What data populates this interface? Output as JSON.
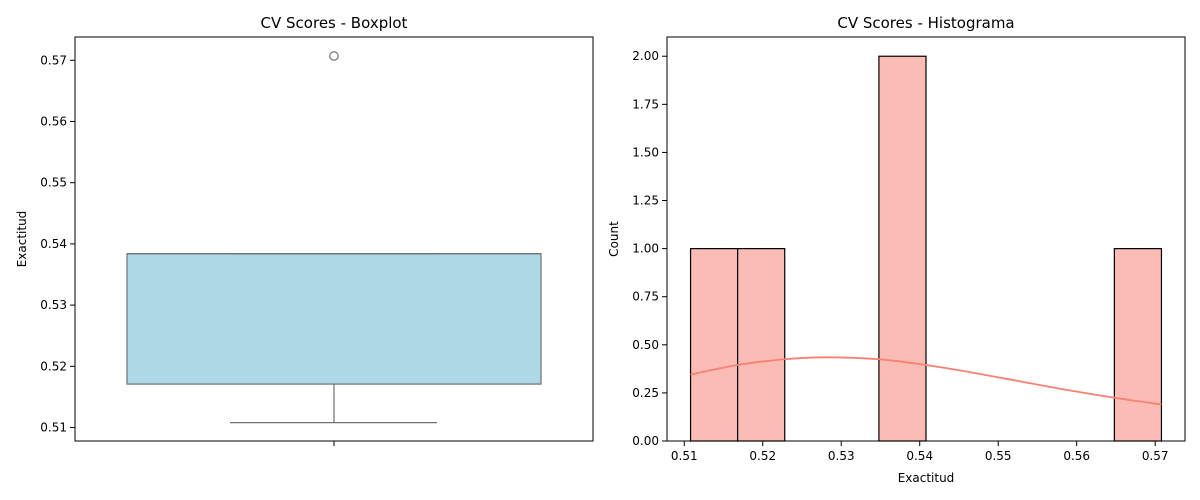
{
  "chart_data": [
    {
      "type": "box",
      "title": "CV Scores - Boxplot",
      "xlabel": "",
      "ylabel": "Exactitud",
      "ylim": [
        0.5078,
        0.5738
      ],
      "yticks": [
        0.51,
        0.52,
        0.53,
        0.54,
        0.55,
        0.56,
        0.57
      ],
      "ytick_labels": [
        "0.51",
        "0.52",
        "0.53",
        "0.54",
        "0.55",
        "0.56",
        "0.57"
      ],
      "box": {
        "q1": 0.5171,
        "median": 0.5384,
        "q3": 0.5384,
        "whisker_low": 0.5108,
        "whisker_high": 0.5384,
        "outliers": [
          0.5707
        ]
      },
      "colors": {
        "box_fill": "#add8e6",
        "line": "#707070"
      }
    },
    {
      "type": "histogram",
      "title": "CV Scores - Histograma",
      "xlabel": "Exactitud",
      "ylabel": "Count",
      "xlim": [
        0.5078,
        0.5738
      ],
      "ylim": [
        0,
        2.1
      ],
      "xticks": [
        0.51,
        0.52,
        0.53,
        0.54,
        0.55,
        0.56,
        0.57
      ],
      "xtick_labels": [
        "0.51",
        "0.52",
        "0.53",
        "0.54",
        "0.55",
        "0.56",
        "0.57"
      ],
      "yticks": [
        0,
        0.25,
        0.5,
        0.75,
        1.0,
        1.25,
        1.5,
        1.75,
        2.0
      ],
      "ytick_labels": [
        "0.00",
        "0.25",
        "0.50",
        "0.75",
        "1.00",
        "1.25",
        "1.50",
        "1.75",
        "2.00"
      ],
      "bins": [
        {
          "start": 0.5108,
          "end": 0.5168,
          "count": 1
        },
        {
          "start": 0.5168,
          "end": 0.5228,
          "count": 1
        },
        {
          "start": 0.5228,
          "end": 0.5288,
          "count": 0
        },
        {
          "start": 0.5288,
          "end": 0.5348,
          "count": 0
        },
        {
          "start": 0.5348,
          "end": 0.5408,
          "count": 2
        },
        {
          "start": 0.5408,
          "end": 0.5468,
          "count": 0
        },
        {
          "start": 0.5468,
          "end": 0.5528,
          "count": 0
        },
        {
          "start": 0.5528,
          "end": 0.5588,
          "count": 0
        },
        {
          "start": 0.5588,
          "end": 0.5648,
          "count": 0
        },
        {
          "start": 0.5648,
          "end": 0.5708,
          "count": 1
        }
      ],
      "kde": {
        "x": [
          0.5108,
          0.5168,
          0.5228,
          0.528,
          0.5348,
          0.5408,
          0.5468,
          0.5528,
          0.5588,
          0.5648,
          0.5708
        ],
        "y": [
          0.345,
          0.395,
          0.425,
          0.435,
          0.425,
          0.395,
          0.355,
          0.31,
          0.265,
          0.225,
          0.19
        ]
      },
      "colors": {
        "bar_fill": "#fabcb4",
        "bar_edge": "#000000",
        "kde_line": "#fa8072"
      }
    }
  ]
}
